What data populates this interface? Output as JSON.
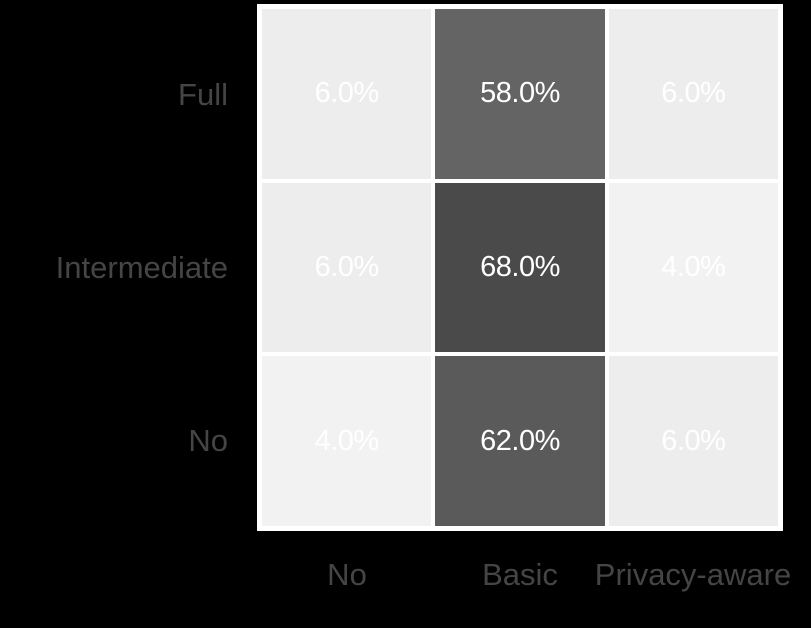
{
  "chart_data": {
    "type": "heatmap",
    "x_categories": [
      "No",
      "Basic",
      "Privacy-aware"
    ],
    "y_categories": [
      "Full",
      "Intermediate",
      "No"
    ],
    "cell_labels": [
      [
        "6.0%",
        "58.0%",
        "6.0%"
      ],
      [
        "6.0%",
        "68.0%",
        "4.0%"
      ],
      [
        "4.0%",
        "62.0%",
        "6.0%"
      ]
    ],
    "values": [
      [
        6.0,
        58.0,
        6.0
      ],
      [
        6.0,
        68.0,
        4.0
      ],
      [
        4.0,
        62.0,
        6.0
      ]
    ],
    "value_domain": [
      4.0,
      68.0
    ],
    "low_color": "#F2F2F2",
    "high_color": "#4A4A4A",
    "tile_border_color": "#FFFFFF",
    "cell_label_color": "#FFFFFF",
    "axis_text_color": "#454545",
    "background_color": "#000000",
    "title": "",
    "xlabel": "",
    "ylabel": "",
    "legend": "none",
    "grid": false
  }
}
